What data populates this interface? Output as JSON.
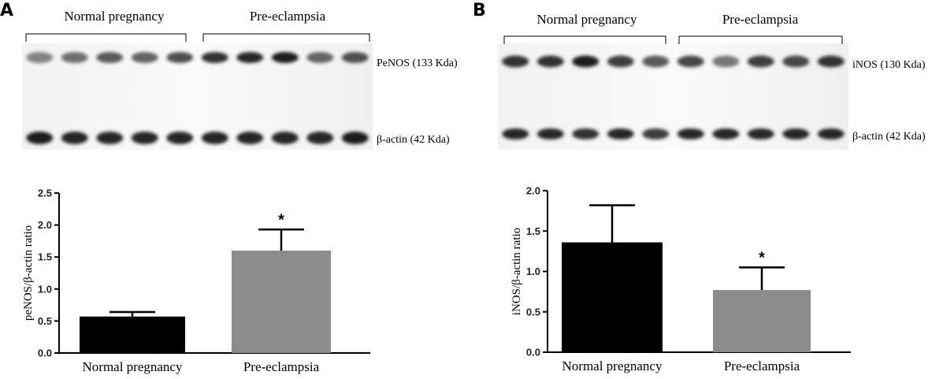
{
  "panels": [
    {
      "letter": "A",
      "blot": {
        "groups": [
          "Normal pregnancy",
          "Pre-eclampsia"
        ],
        "bands": [
          {
            "label": "PeNOS (133 Kda)",
            "intensity": [
              0.45,
              0.55,
              0.65,
              0.6,
              0.7,
              0.85,
              0.9,
              0.95,
              0.6,
              0.7
            ]
          },
          {
            "label": "β-actin (42 Kda)",
            "intensity": [
              0.95,
              0.9,
              0.9,
              0.9,
              0.9,
              0.9,
              0.9,
              0.9,
              0.9,
              0.95
            ]
          }
        ]
      }
    },
    {
      "letter": "B",
      "blot": {
        "groups": [
          "Normal pregnancy",
          "Pre-eclampsia"
        ],
        "bands": [
          {
            "label": "iNOS (130 Kda)",
            "intensity": [
              0.85,
              0.85,
              0.95,
              0.8,
              0.65,
              0.75,
              0.5,
              0.8,
              0.75,
              0.85
            ]
          },
          {
            "label": "β-actin (42 Kda)",
            "intensity": [
              0.9,
              0.9,
              0.85,
              0.9,
              0.8,
              0.9,
              0.9,
              0.9,
              0.9,
              0.9
            ]
          }
        ]
      }
    }
  ],
  "chart_data": [
    {
      "type": "bar",
      "categories": [
        "Normal pregnancy",
        "Pre-eclampsia"
      ],
      "values": [
        0.57,
        1.6
      ],
      "errors": [
        0.07,
        0.33
      ],
      "significance": [
        "",
        "*"
      ],
      "colors": [
        "#000000",
        "#8c8c8c"
      ],
      "ylabel": "peNOS/β-actin ratio",
      "ylim": [
        0,
        2.5
      ],
      "yticks": [
        "0.0",
        "0.5",
        "1.0",
        "1.5",
        "2.0",
        "2.5"
      ]
    },
    {
      "type": "bar",
      "categories": [
        "Normal pregnancy",
        "Pre-eclampsia"
      ],
      "values": [
        1.36,
        0.77
      ],
      "errors": [
        0.46,
        0.28
      ],
      "significance": [
        "",
        "*"
      ],
      "colors": [
        "#000000",
        "#8c8c8c"
      ],
      "ylabel": "iNOS/β-actin ratio",
      "ylim": [
        0,
        2.0
      ],
      "yticks": [
        "0.0",
        "0.5",
        "1.0",
        "1.5",
        "2.0"
      ]
    }
  ]
}
